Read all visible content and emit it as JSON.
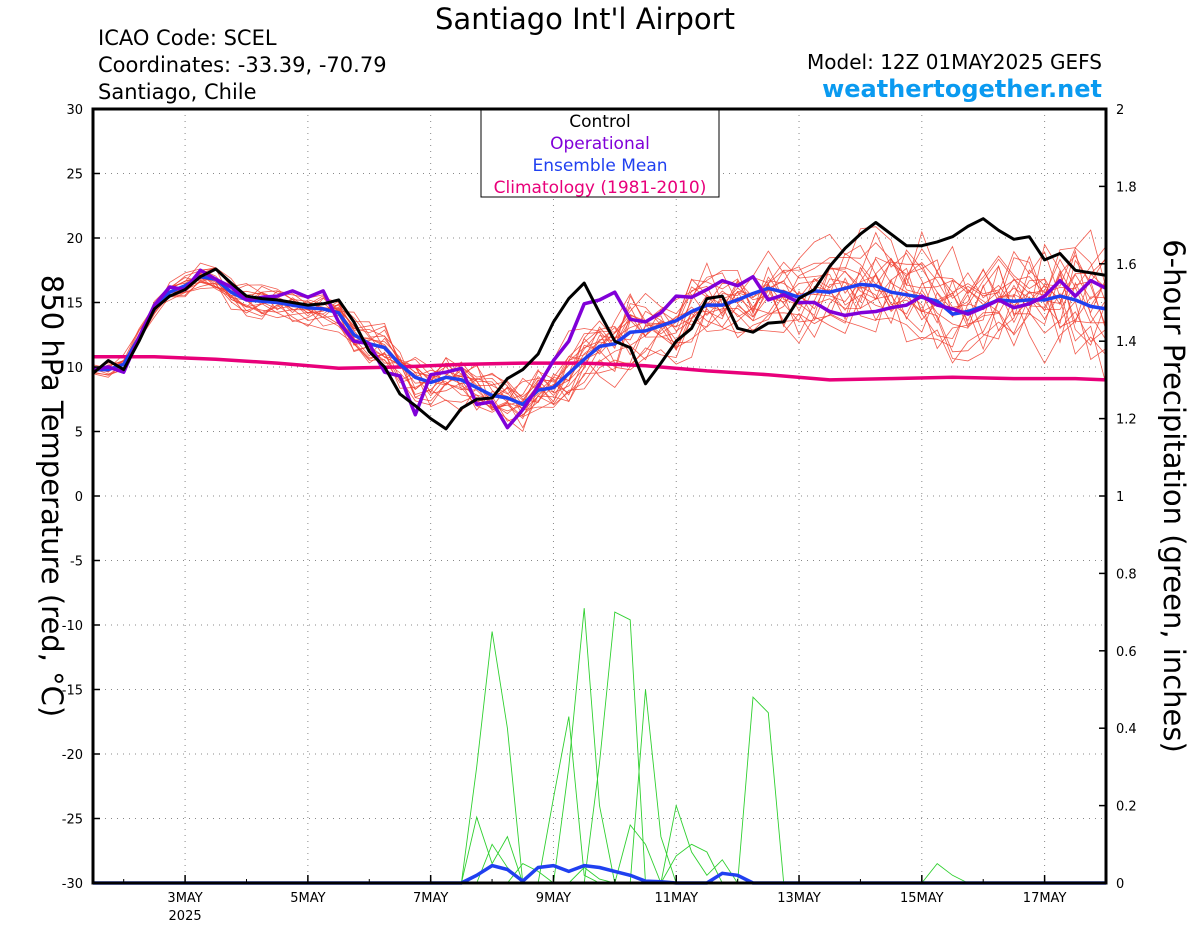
{
  "header": {
    "title": "Santiago Int'l Airport",
    "icao": "ICAO Code: SCEL",
    "coordinates": "Coordinates: -33.39, -70.79",
    "location": "Santiago, Chile",
    "model": "Model: 12Z 01MAY2025 GEFS",
    "site": "weathertogether.net"
  },
  "colors": {
    "control": "#000000",
    "operational": "#8000d8",
    "ensemble_mean": "#2040f0",
    "climatology": "#e8007a",
    "members_temp": "#f04030",
    "members_precip": "#30d030",
    "site_link": "#0a9af0",
    "grid": "#888888"
  },
  "chart_data": {
    "type": "line",
    "x_axis": {
      "unit": "days since 2025-05-01 12Z (x = 0 at 1MAY 12Z)",
      "xlim": [
        0.0,
        16.5
      ],
      "ticks": [
        {
          "x": 1.5,
          "label": "3MAY",
          "sublabel": "2025"
        },
        {
          "x": 3.5,
          "label": "5MAY"
        },
        {
          "x": 5.5,
          "label": "7MAY"
        },
        {
          "x": 7.5,
          "label": "9MAY"
        },
        {
          "x": 9.5,
          "label": "11MAY"
        },
        {
          "x": 11.5,
          "label": "13MAY"
        },
        {
          "x": 13.5,
          "label": "15MAY"
        },
        {
          "x": 15.5,
          "label": "17MAY"
        }
      ]
    },
    "y_left": {
      "label": "850 hPa Temperature (red, °C)",
      "ylim": [
        -30,
        30
      ],
      "ticks": [
        30,
        25,
        20,
        15,
        10,
        5,
        0,
        -5,
        -10,
        -15,
        -20,
        -25,
        -30
      ]
    },
    "y_right": {
      "label": "6-hour Precipitation (green, inches)",
      "ylim": [
        0,
        2
      ],
      "ticks": [
        "2",
        "1.8",
        "1.6",
        "1.4",
        "1.2",
        "1",
        "0.8",
        "0.6",
        "0.4",
        "0.2",
        "0"
      ]
    },
    "grid": true,
    "legend": {
      "placement": "top-center",
      "entries": [
        "Control",
        "Operational",
        "Ensemble Mean",
        "Climatology (1981-2010)"
      ]
    },
    "temperature": {
      "control": {
        "x": [
          0,
          0.25,
          0.5,
          0.75,
          1,
          1.25,
          1.5,
          1.75,
          2,
          2.25,
          2.5,
          2.75,
          3,
          3.25,
          3.5,
          3.75,
          4,
          4.25,
          4.5,
          4.75,
          5,
          5.25,
          5.5,
          5.75,
          6,
          6.25,
          6.5,
          6.75,
          7,
          7.25,
          7.5,
          7.75,
          8,
          8.25,
          8.5,
          8.75,
          9,
          9.25,
          9.5,
          9.75,
          10,
          10.25,
          10.5,
          10.75,
          11,
          11.25,
          11.5,
          11.75,
          12,
          12.25,
          12.5,
          12.75,
          13,
          13.25,
          13.5,
          13.75,
          14,
          14.25,
          14.5,
          14.75,
          15,
          15.25,
          15.5,
          15.75,
          16,
          16.25,
          16.5
        ],
        "y": [
          9.5,
          10.5,
          9.8,
          12,
          14.5,
          15.5,
          16,
          17,
          17.6,
          16.5,
          15.5,
          15.3,
          15.2,
          15.0,
          14.8,
          14.9,
          15.2,
          13.5,
          11.2,
          10,
          7.9,
          7.0,
          6.0,
          5.2,
          6.8,
          7.5,
          7.6,
          9.1,
          9.8,
          11,
          13.5,
          15.3,
          16.5,
          14.2,
          12,
          11.5,
          8.7,
          10.3,
          12,
          13,
          15.3,
          15.5,
          13,
          12.7,
          13.4,
          13.5,
          15.3,
          16,
          17.8,
          19.2,
          20.3,
          21.2,
          20.3,
          19.4,
          19.4,
          19.7,
          20.1,
          20.9,
          21.5,
          20.6,
          19.9,
          20.1,
          18.3,
          18.8,
          17.5,
          17.3,
          17.1
        ]
      },
      "operational": {
        "x": [
          0,
          0.25,
          0.5,
          0.75,
          1,
          1.25,
          1.5,
          1.75,
          2,
          2.25,
          2.5,
          2.75,
          3,
          3.25,
          3.5,
          3.75,
          4,
          4.25,
          4.5,
          4.75,
          5,
          5.25,
          5.5,
          5.75,
          6,
          6.25,
          6.5,
          6.75,
          7,
          7.25,
          7.5,
          7.75,
          8,
          8.25,
          8.5,
          8.75,
          9,
          9.25,
          9.5,
          9.75,
          10,
          10.25,
          10.5,
          10.75,
          11,
          11.25,
          11.5,
          11.75,
          12,
          12.25,
          12.5,
          12.75,
          13,
          13.25,
          13.5,
          13.75,
          14,
          14.25,
          14.5,
          14.75,
          15,
          15.25,
          15.5,
          15.75,
          16,
          16.25,
          16.5
        ],
        "y": [
          9.8,
          10,
          9.6,
          12.3,
          14.8,
          16.2,
          16,
          17.5,
          16.8,
          16.2,
          15.2,
          15.4,
          15.5,
          15.9,
          15.4,
          15.9,
          13.5,
          12,
          11.8,
          9.6,
          9.3,
          6.3,
          9.4,
          9.6,
          9.9,
          7.1,
          7.3,
          5.3,
          6.7,
          8.5,
          10.5,
          12,
          14.9,
          15.2,
          15.8,
          13.7,
          13.5,
          14.2,
          15.5,
          15.4,
          16,
          16.7,
          16.3,
          17,
          15.2,
          15.6,
          15,
          15,
          14.3,
          14,
          14.2,
          14.3,
          14.6,
          14.8,
          15.5,
          14.8,
          14.5,
          14.1,
          14.6,
          15.2,
          14.6,
          14.9,
          15.5,
          16.7,
          15.5,
          16.7,
          16.1
        ]
      },
      "ensemble_mean": {
        "x": [
          0,
          0.25,
          0.5,
          0.75,
          1,
          1.25,
          1.5,
          1.75,
          2,
          2.25,
          2.5,
          2.75,
          3,
          3.25,
          3.5,
          3.75,
          4,
          4.25,
          4.5,
          4.75,
          5,
          5.25,
          5.5,
          5.75,
          6,
          6.25,
          6.5,
          6.75,
          7,
          7.25,
          7.5,
          7.75,
          8,
          8.25,
          8.5,
          8.75,
          9,
          9.25,
          9.5,
          9.75,
          10,
          10.25,
          10.5,
          10.75,
          11,
          11.25,
          11.5,
          11.75,
          12,
          12.25,
          12.5,
          12.75,
          13,
          13.25,
          13.5,
          13.75,
          14,
          14.25,
          14.5,
          14.75,
          15,
          15.25,
          15.5,
          15.75,
          16,
          16.25,
          16.5
        ],
        "y": [
          9.8,
          9.8,
          10.2,
          12.3,
          14.5,
          15.8,
          16.3,
          17,
          16.8,
          15.8,
          15.2,
          15.1,
          15.0,
          14.8,
          14.6,
          14.5,
          14.2,
          12.5,
          11.8,
          11.5,
          10.2,
          9.2,
          8.8,
          9.2,
          9.0,
          8.4,
          7.8,
          7.6,
          7.1,
          8.2,
          8.4,
          9.5,
          10.6,
          11.6,
          11.8,
          12.7,
          12.8,
          13.2,
          13.6,
          14.3,
          14.8,
          14.8,
          15.2,
          15.7,
          16.1,
          15.8,
          15.4,
          15.9,
          15.8,
          16.1,
          16.4,
          16.3,
          15.8,
          15.6,
          15.4,
          15.1,
          14.1,
          14.3,
          14.7,
          15.2,
          15.1,
          15.2,
          15.2,
          15.5,
          15.2,
          14.7,
          14.5
        ]
      },
      "climatology": {
        "x": [
          0,
          1,
          2,
          3,
          4,
          5,
          6,
          7,
          8,
          9,
          10,
          11,
          12,
          13,
          14,
          15,
          16,
          16.5
        ],
        "y": [
          10.8,
          10.8,
          10.6,
          10.3,
          9.9,
          10.0,
          10.2,
          10.3,
          10.3,
          10.1,
          9.7,
          9.4,
          9.0,
          9.1,
          9.2,
          9.1,
          9.1,
          9.0
        ]
      }
    },
    "precipitation": {
      "ensemble_mean": {
        "x": [
          0,
          6,
          6.25,
          6.5,
          6.75,
          7,
          7.25,
          7.5,
          7.75,
          8,
          8.25,
          8.5,
          8.75,
          9,
          9.25,
          9.5,
          9.75,
          10,
          10.25,
          10.5,
          10.75,
          11,
          16.5
        ],
        "y": [
          0,
          0,
          0.02,
          0.045,
          0.035,
          0.005,
          0.04,
          0.045,
          0.03,
          0.045,
          0.04,
          0.03,
          0.02,
          0.005,
          0.003,
          0,
          0,
          0,
          0.025,
          0.02,
          0,
          0,
          0
        ]
      },
      "members": [
        {
          "x": [
            6,
            6.25,
            6.5,
            6.75,
            7
          ],
          "y": [
            0,
            0.3,
            0.65,
            0.4,
            0
          ]
        },
        {
          "x": [
            6,
            6.25,
            6.5,
            6.75,
            7
          ],
          "y": [
            0,
            0.17,
            0.05,
            0.12,
            0
          ]
        },
        {
          "x": [
            6.25,
            6.5,
            6.75,
            7
          ],
          "y": [
            0,
            0.1,
            0.04,
            0
          ]
        },
        {
          "x": [
            7.25,
            7.5,
            7.75,
            8,
            8.25
          ],
          "y": [
            0,
            0.22,
            0.43,
            0.02,
            0
          ]
        },
        {
          "x": [
            7.5,
            7.75,
            8,
            8.25,
            8.5
          ],
          "y": [
            0,
            0.3,
            0.71,
            0.2,
            0
          ]
        },
        {
          "x": [
            8,
            8.25,
            8.5,
            8.75,
            9
          ],
          "y": [
            0,
            0.31,
            0.7,
            0.68,
            0
          ]
        },
        {
          "x": [
            8.5,
            8.75,
            9,
            9.25
          ],
          "y": [
            0,
            0.15,
            0.1,
            0
          ]
        },
        {
          "x": [
            9.25,
            9.5,
            9.75,
            10,
            10.25
          ],
          "y": [
            0,
            0.07,
            0.1,
            0.08,
            0
          ]
        },
        {
          "x": [
            8.75,
            9,
            9.25,
            9.5
          ],
          "y": [
            0,
            0.5,
            0.12,
            0
          ]
        },
        {
          "x": [
            9.25,
            9.5,
            9.75,
            10,
            10.25,
            10.5
          ],
          "y": [
            0,
            0.2,
            0.08,
            0.02,
            0.06,
            0
          ]
        },
        {
          "x": [
            10.5,
            10.75,
            11,
            11.25
          ],
          "y": [
            0,
            0.48,
            0.44,
            0
          ]
        },
        {
          "x": [
            6.75,
            7,
            7.25,
            7.5
          ],
          "y": [
            0,
            0.05,
            0.03,
            0
          ]
        },
        {
          "x": [
            7.75,
            8,
            8.25,
            8.5
          ],
          "y": [
            0,
            0.04,
            0.01,
            0
          ]
        },
        {
          "x": [
            13.5,
            13.75,
            14,
            14.25
          ],
          "y": [
            0,
            0.05,
            0.02,
            0
          ]
        }
      ]
    }
  }
}
